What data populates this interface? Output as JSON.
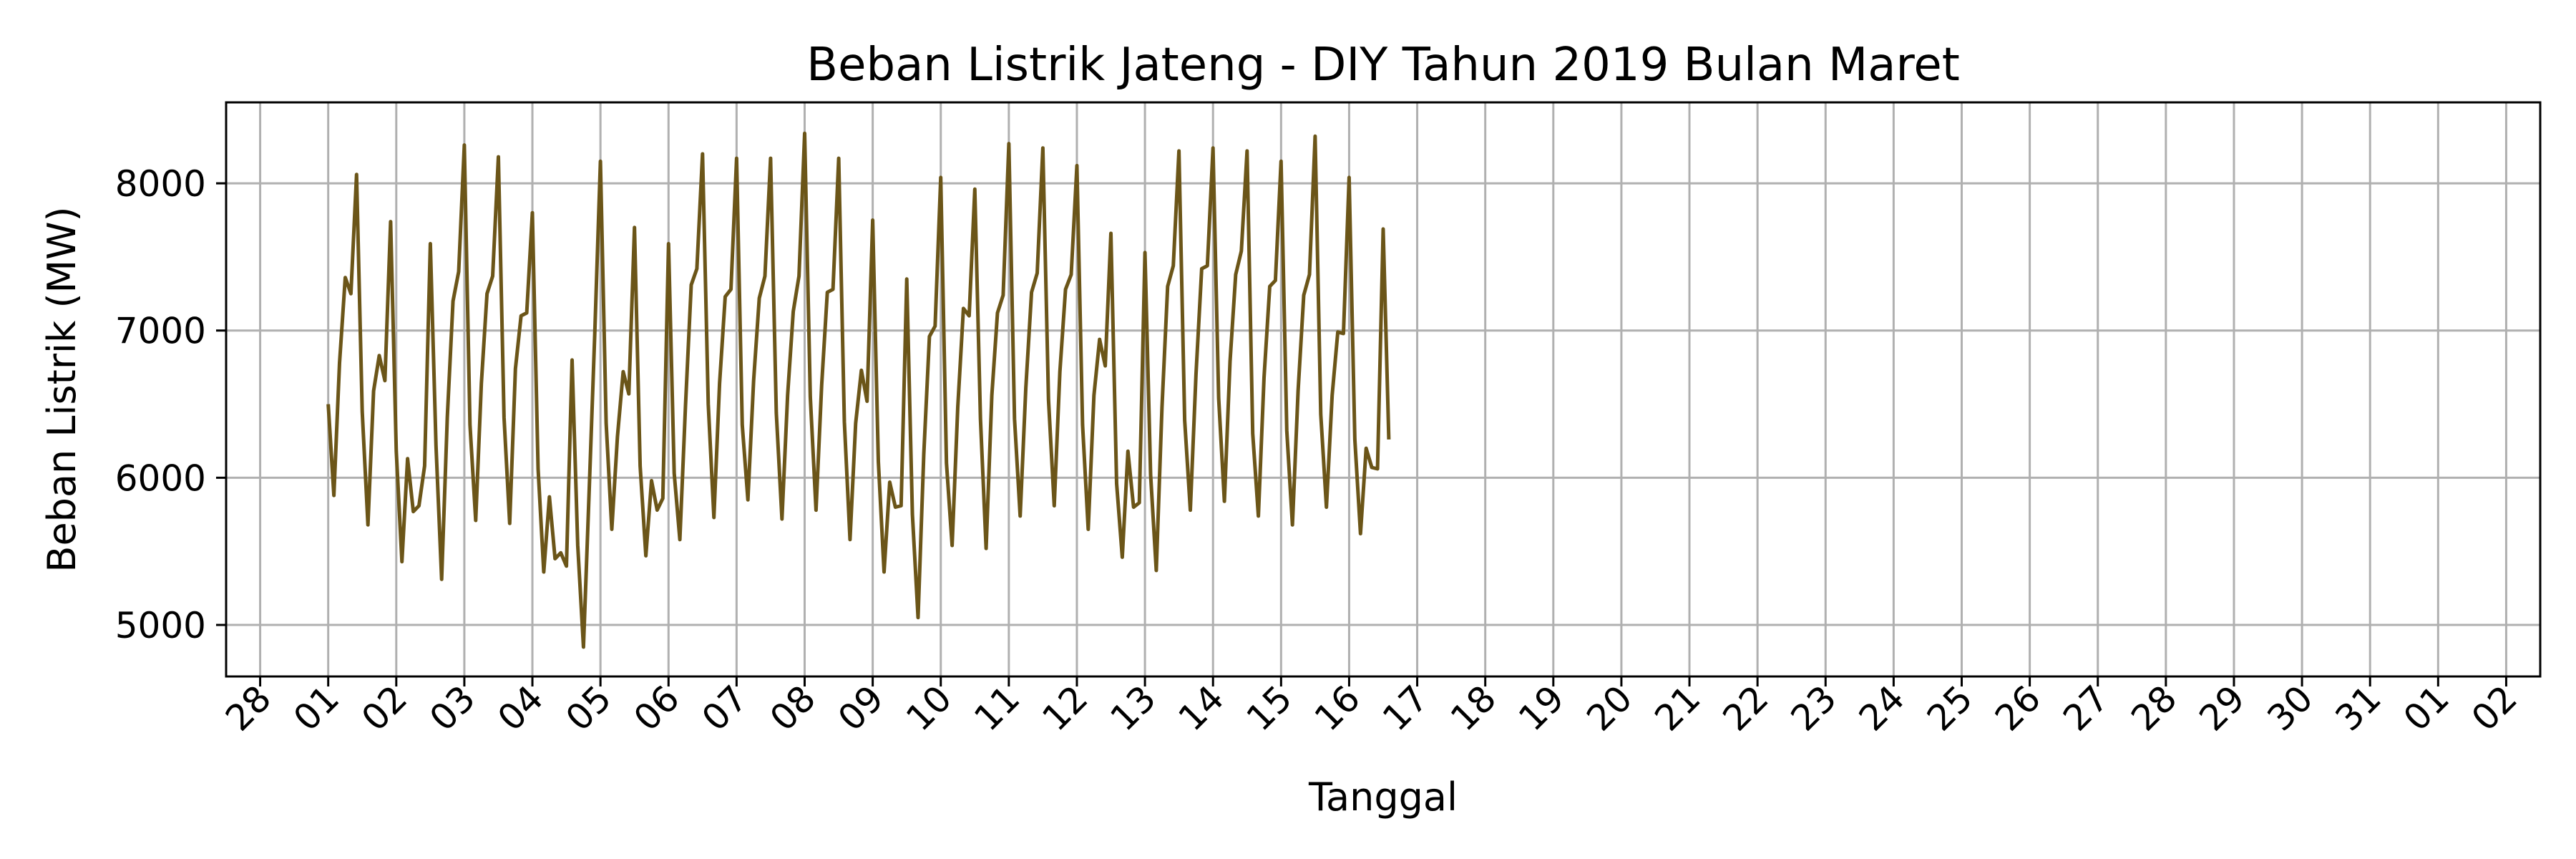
{
  "chart_data": {
    "type": "line",
    "title": "Beban Listrik Jateng - DIY Tahun 2019 Bulan Maret",
    "xlabel": "Tanggal",
    "ylabel": "Beban Listrik (MW)",
    "xlim": [
      "2019-02-27T12:00",
      "2019-04-02T12:00"
    ],
    "ylim": [
      4650,
      8550
    ],
    "x_ticks": [
      "2019-02-28",
      "2019-03-01",
      "2019-03-02",
      "2019-03-03",
      "2019-03-04",
      "2019-03-05",
      "2019-03-06",
      "2019-03-07",
      "2019-03-08",
      "2019-03-09",
      "2019-03-10",
      "2019-03-11",
      "2019-03-12",
      "2019-03-13",
      "2019-03-14",
      "2019-03-15",
      "2019-03-16",
      "2019-03-17",
      "2019-03-18",
      "2019-03-19",
      "2019-03-20",
      "2019-03-21",
      "2019-03-22",
      "2019-03-23",
      "2019-03-24",
      "2019-03-25",
      "2019-03-26",
      "2019-03-27",
      "2019-03-28",
      "2019-03-29",
      "2019-03-30",
      "2019-03-31",
      "2019-04-01",
      "2019-04-02"
    ],
    "x_tick_labels": [
      "28",
      "01",
      "02",
      "03",
      "04",
      "05",
      "06",
      "07",
      "08",
      "09",
      "10",
      "11",
      "12",
      "13",
      "14",
      "15",
      "16",
      "17",
      "18",
      "19",
      "20",
      "21",
      "22",
      "23",
      "24",
      "25",
      "26",
      "27",
      "28",
      "29",
      "30",
      "31",
      "01",
      "02"
    ],
    "y_ticks": [
      5000,
      6000,
      7000,
      8000
    ],
    "y_tick_labels": [
      "5000",
      "6000",
      "7000",
      "8000"
    ],
    "grid": true,
    "color": "#6b5518",
    "sampling": "every 2 hours, starting 2019-03-01 00:00",
    "series": [
      {
        "name": "",
        "values": [
          6500,
          5880,
          6780,
          7360,
          7250,
          8060,
          6450,
          5680,
          6590,
          6830,
          6660,
          7740,
          6180,
          5430,
          6130,
          5770,
          5810,
          6080,
          7590,
          6220,
          5310,
          6410,
          7200,
          7400,
          8260,
          6360,
          5710,
          6640,
          7250,
          7370,
          8180,
          6410,
          5690,
          6740,
          7100,
          7120,
          7800,
          6060,
          5360,
          5870,
          5450,
          5490,
          5400,
          6800,
          5540,
          4850,
          5900,
          6980,
          8150,
          6370,
          5650,
          6280,
          6720,
          6570,
          7700,
          6080,
          5470,
          5980,
          5780,
          5860,
          7590,
          6030,
          5580,
          6490,
          7310,
          7420,
          8200,
          6500,
          5730,
          6640,
          7230,
          7280,
          8170,
          6360,
          5850,
          6660,
          7220,
          7370,
          8170,
          6440,
          5720,
          6560,
          7130,
          7370,
          8340,
          6550,
          5780,
          6630,
          7260,
          7280,
          8170,
          6380,
          5580,
          6370,
          6730,
          6520,
          7750,
          6110,
          5360,
          5970,
          5800,
          5810,
          7350,
          5750,
          5050,
          6160,
          6960,
          7030,
          8040,
          6100,
          5540,
          6480,
          7150,
          7100,
          7960,
          6400,
          5520,
          6560,
          7120,
          7240,
          8270,
          6400,
          5740,
          6610,
          7260,
          7390,
          8240,
          6530,
          5810,
          6720,
          7280,
          7380,
          8120,
          6360,
          5650,
          6560,
          6940,
          6760,
          7660,
          5960,
          5460,
          6180,
          5800,
          5830,
          7530,
          6020,
          5370,
          6480,
          7300,
          7440,
          8220,
          6390,
          5780,
          6700,
          7420,
          7440,
          8240,
          6540,
          5840,
          6790,
          7380,
          7540,
          8220,
          6300,
          5740,
          6680,
          7300,
          7340,
          8150,
          6320,
          5680,
          6590,
          7240,
          7380,
          8320,
          6430,
          5800,
          6560,
          6990,
          6980,
          8040,
          6260,
          5620,
          6200,
          6070,
          6060,
          7690,
          6260
        ]
      }
    ]
  }
}
